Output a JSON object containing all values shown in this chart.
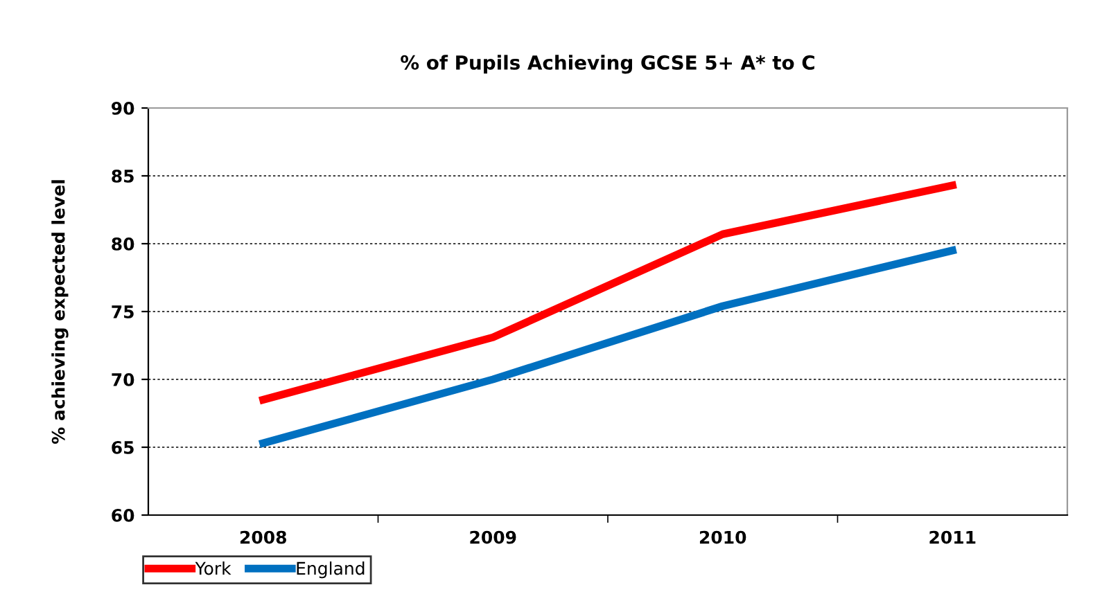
{
  "chart_data": {
    "type": "line",
    "title": "% of Pupils Achieving GCSE 5+ A* to C",
    "ylabel": "% achieving expected level",
    "categories": [
      "2008",
      "2009",
      "2010",
      "2011"
    ],
    "series": [
      {
        "name": "York",
        "color": "#ff0000",
        "values": [
          68.5,
          73.1,
          80.7,
          84.3
        ]
      },
      {
        "name": "England",
        "color": "#0070c0",
        "values": [
          65.3,
          70.0,
          75.4,
          79.5
        ]
      }
    ],
    "ylim": [
      60,
      90
    ],
    "yticks": [
      60,
      65,
      70,
      75,
      80,
      85,
      90
    ],
    "grid": "y",
    "legend": "bottom left",
    "marker": "none",
    "line_style": "solid"
  }
}
